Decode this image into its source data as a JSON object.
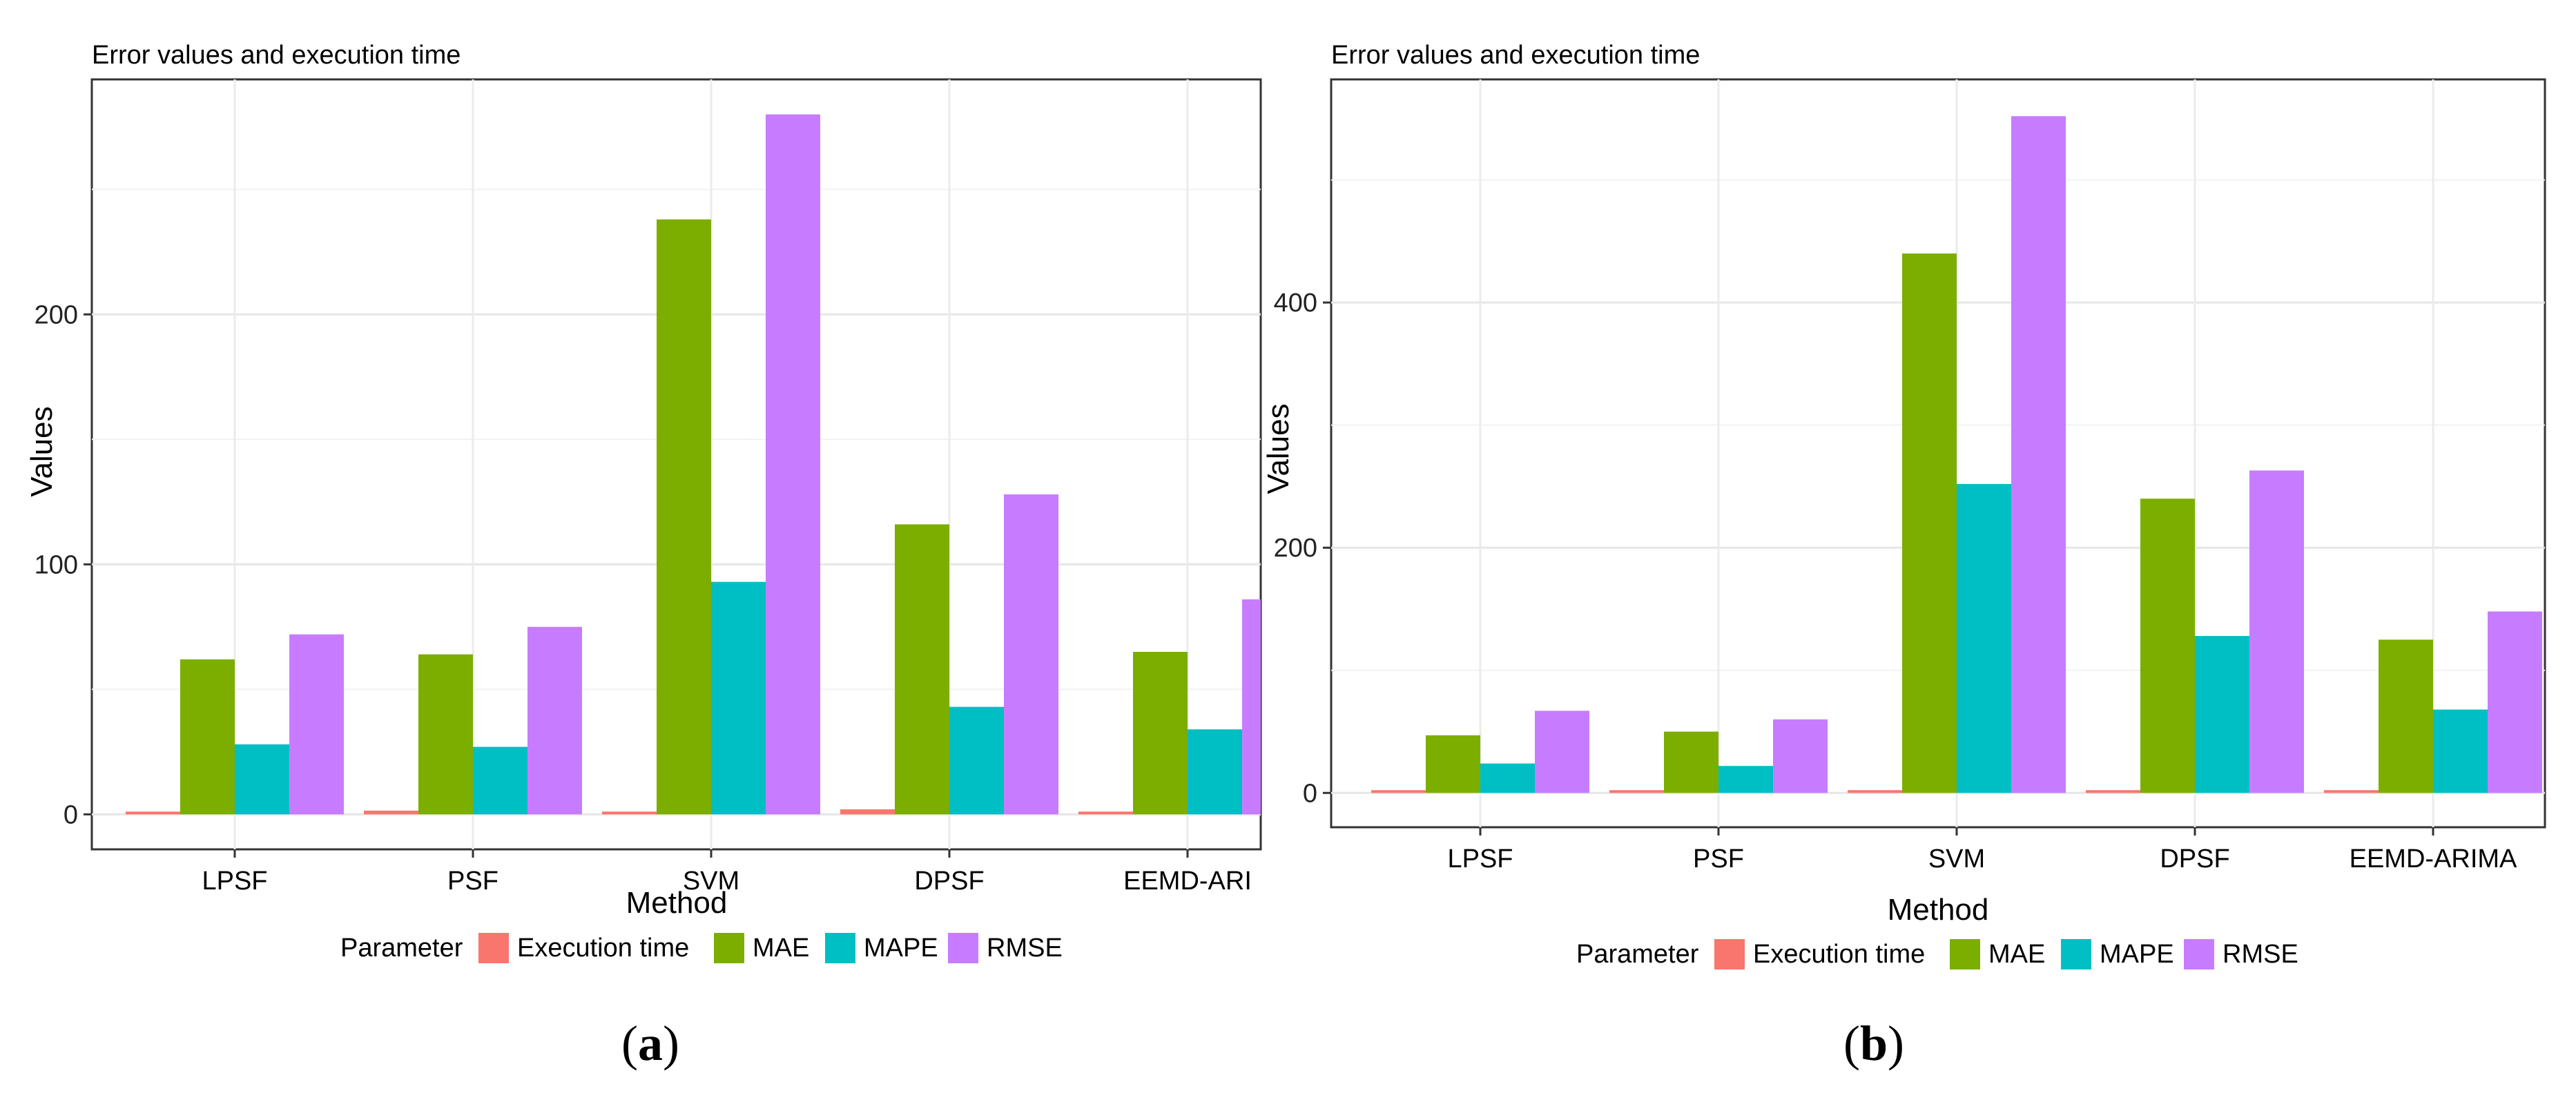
{
  "figure": {
    "captions": [
      "(a)",
      "(b)"
    ]
  },
  "chart_data": [
    {
      "type": "bar",
      "title": "Error values and execution time",
      "xlabel": "Method",
      "ylabel": "Values",
      "categories": [
        "LPSF",
        "PSF",
        "SVM",
        "DPSF",
        "EEMD-ARIMA"
      ],
      "category_labels_shown": [
        "LPSF",
        "PSF",
        "SVM",
        "DPSF",
        "EEMD-ARI"
      ],
      "ylim": [
        -14,
        294
      ],
      "yticks": [
        0,
        100,
        200
      ],
      "grid": true,
      "legend_title": "Parameter",
      "legend_position": "bottom",
      "series": [
        {
          "name": "Execution time",
          "color": "#F8766D",
          "values": [
            0.8,
            1.5,
            0.5,
            2.0,
            0.6
          ]
        },
        {
          "name": "MAE",
          "color": "#7CAE00",
          "values": [
            62,
            64,
            238,
            116,
            65
          ]
        },
        {
          "name": "MAPE",
          "color": "#00BFC4",
          "values": [
            28,
            27,
            93,
            43,
            34
          ]
        },
        {
          "name": "RMSE",
          "color": "#C77CFF",
          "values": [
            72,
            75,
            280,
            128,
            86
          ]
        }
      ]
    },
    {
      "type": "bar",
      "title": "Error values and execution time",
      "xlabel": "Method",
      "ylabel": "Values",
      "categories": [
        "LPSF",
        "PSF",
        "SVM",
        "DPSF",
        "EEMD-ARIMA"
      ],
      "category_labels_shown": [
        "LPSF",
        "PSF",
        "SVM",
        "DPSF",
        "EEMD-ARIMA"
      ],
      "ylim": [
        -28,
        582
      ],
      "yticks": [
        0,
        200,
        400
      ],
      "grid": true,
      "legend_title": "Parameter",
      "legend_position": "bottom",
      "series": [
        {
          "name": "Execution time",
          "color": "#F8766D",
          "values": [
            0.8,
            1.0,
            0.5,
            2.0,
            0.8
          ]
        },
        {
          "name": "MAE",
          "color": "#7CAE00",
          "values": [
            47,
            50,
            440,
            240,
            125
          ]
        },
        {
          "name": "MAPE",
          "color": "#00BFC4",
          "values": [
            24,
            22,
            252,
            128,
            68
          ]
        },
        {
          "name": "RMSE",
          "color": "#C77CFF",
          "values": [
            67,
            60,
            552,
            263,
            148
          ]
        }
      ]
    }
  ]
}
